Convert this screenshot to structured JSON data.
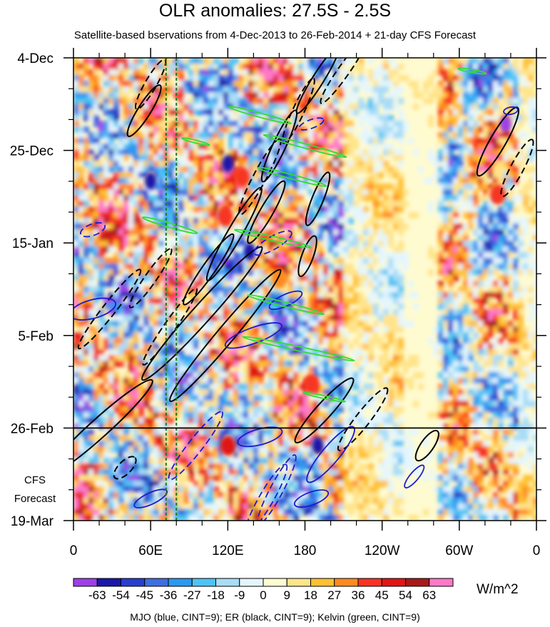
{
  "title": "OLR anomalies: 27.5S - 2.5S",
  "subtitle": "Satellite-based bservations from 4-Dec-2013 to 26-Feb-2014 + 21-day CFS Forecast",
  "forecast_label": [
    "CFS",
    "Forecast"
  ],
  "units": "W/m^2",
  "footer": "MJO (blue, CINT=9); ER (black, CINT=9); Kelvin (green, CINT=9)",
  "chart_data": {
    "type": "heatmap",
    "title": "OLR anomalies: 27.5S - 2.5S",
    "x_ticks": [
      "0",
      "60E",
      "120E",
      "180",
      "120W",
      "60W",
      "0"
    ],
    "x_tick_lon": [
      0,
      60,
      120,
      180,
      240,
      300,
      360
    ],
    "y_ticks": [
      "4-Dec",
      "25-Dec",
      "15-Jan",
      "5-Feb",
      "26-Feb",
      "19-Mar"
    ],
    "y_tick_day": [
      0,
      21,
      42,
      63,
      84,
      105
    ],
    "observation_end": "26-Feb",
    "forecast_days": 21,
    "dashed_reference_lons": [
      72,
      80
    ],
    "colorbar": {
      "labels": [
        "-63",
        "-54",
        "-45",
        "-36",
        "-27",
        "-18",
        "-9",
        "0",
        "9",
        "18",
        "27",
        "36",
        "45",
        "54",
        "63"
      ],
      "colors": [
        "#9f3fe8",
        "#1a18a8",
        "#2a3ecf",
        "#3f6fe0",
        "#2c99f0",
        "#4ec3f5",
        "#a8dcf7",
        "#e4f6fd",
        "#fffbd0",
        "#ffe48a",
        "#ffc032",
        "#ff8a1e",
        "#f73422",
        "#e01616",
        "#a81a1a",
        "#ff78c8"
      ]
    },
    "contours": {
      "MJO": {
        "color": "#1c1ccc",
        "cint": 9
      },
      "ER": {
        "color": "#000000",
        "cint": 9
      },
      "Kelvin": {
        "color": "#33dd33",
        "cint": 9
      }
    }
  }
}
